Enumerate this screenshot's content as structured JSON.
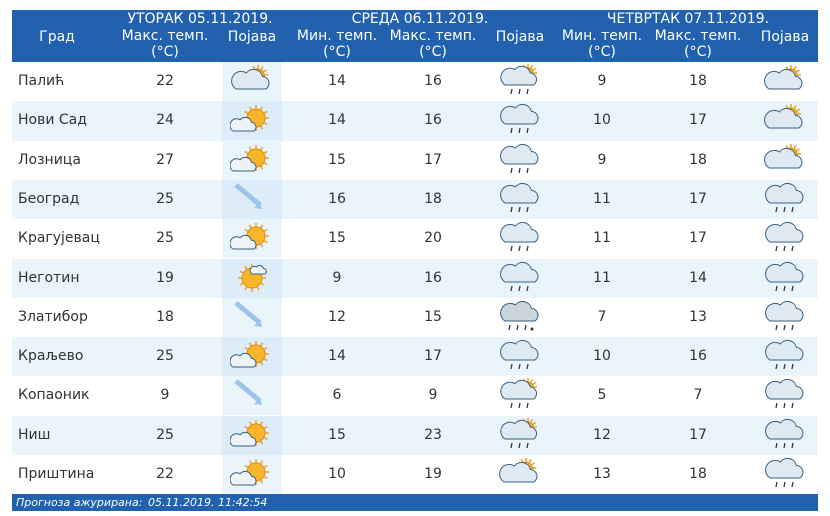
{
  "header": {
    "days": [
      "УТОРАК  05.11.2019.",
      "СРЕДА  06.11.2019.",
      "ЧЕТВРТАК  07.11.2019."
    ],
    "columns": [
      [
        "Град"
      ],
      [
        "Макс. темп.",
        "(°C)"
      ],
      [
        "Појава"
      ],
      [
        "Мин. темп.",
        "(°C)"
      ],
      [
        "Макс. темп.",
        "(°C)"
      ],
      [
        "Појава"
      ],
      [
        "Мин. темп.",
        "(°C)"
      ],
      [
        "Макс. темп.",
        "(°C)"
      ],
      [
        "Појава"
      ]
    ]
  },
  "table": {
    "rows": [
      [
        "Палић",
        22,
        14,
        16,
        9,
        18
      ],
      [
        "Нови Сад",
        24,
        14,
        16,
        10,
        17
      ],
      [
        "Лозница",
        27,
        15,
        17,
        9,
        18
      ],
      [
        "Београд",
        25,
        16,
        18,
        11,
        17
      ],
      [
        "Крагујевац",
        25,
        15,
        20,
        11,
        17
      ],
      [
        "Неготин",
        19,
        9,
        16,
        11,
        14
      ],
      [
        "Златибор",
        18,
        12,
        15,
        7,
        13
      ],
      [
        "Краљево",
        25,
        14,
        17,
        10,
        16
      ],
      [
        "Копаоник",
        9,
        6,
        9,
        5,
        7
      ],
      [
        "Ниш",
        25,
        15,
        23,
        12,
        17
      ],
      [
        "Приштина",
        22,
        10,
        19,
        13,
        18
      ]
    ]
  },
  "footer": {
    "label": "Прогноза ажурирана:",
    "timestamp": "05.11.2019. 11:42:54"
  }
}
